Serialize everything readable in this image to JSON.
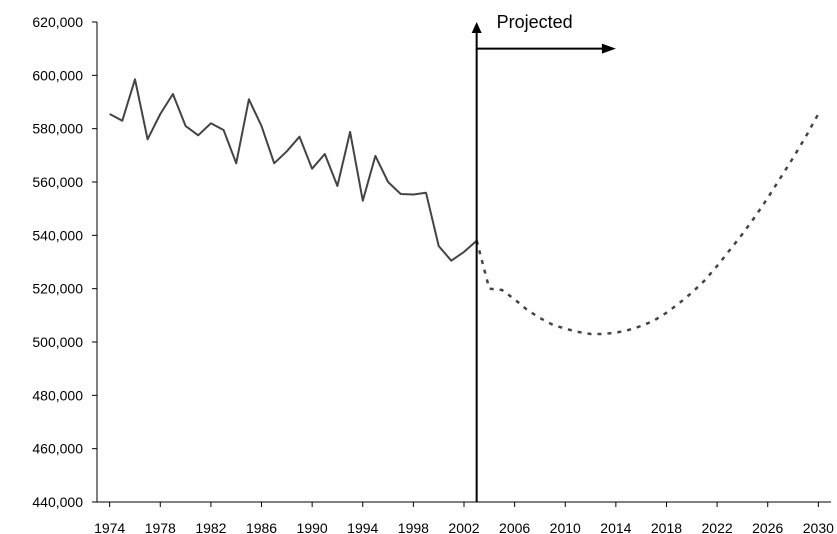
{
  "chart_data": {
    "type": "line",
    "title": "",
    "xlabel": "",
    "ylabel": "",
    "xlim": [
      1973,
      2031
    ],
    "ylim": [
      440000,
      620000
    ],
    "x_ticks": [
      1974,
      1978,
      1982,
      1986,
      1990,
      1994,
      1998,
      2002,
      2006,
      2010,
      2014,
      2018,
      2022,
      2026,
      2030
    ],
    "y_ticks": [
      440000,
      460000,
      480000,
      500000,
      520000,
      540000,
      560000,
      580000,
      600000,
      620000
    ],
    "y_tick_labels": [
      "440,000",
      "460,000",
      "480,000",
      "500,000",
      "520,000",
      "540,000",
      "560,000",
      "580,000",
      "600,000",
      "620,000"
    ],
    "grid": false,
    "divider_x": 2003,
    "annotation": {
      "text": "Projected",
      "arrow_from_x": 2003,
      "arrow_to_x": 2014,
      "y": 610000
    },
    "series": [
      {
        "style": "solid",
        "x": [
          1974,
          1975,
          1976,
          1977,
          1978,
          1979,
          1980,
          1981,
          1982,
          1983,
          1984,
          1985,
          1986,
          1987,
          1988,
          1989,
          1990,
          1991,
          1992,
          1993,
          1994,
          1995,
          1996,
          1997,
          1998,
          1999,
          2000,
          2001,
          2002,
          2003
        ],
        "y": [
          585500,
          583000,
          598500,
          576000,
          585500,
          593000,
          581000,
          577500,
          582000,
          579500,
          567000,
          591000,
          581000,
          567000,
          571500,
          577000,
          565000,
          570500,
          558500,
          578800,
          553000,
          569800,
          560000,
          555500,
          555300,
          556000,
          536000,
          530500,
          533800,
          538000
        ]
      },
      {
        "style": "dashed",
        "x": [
          2003,
          2004,
          2005,
          2006,
          2007,
          2008,
          2009,
          2010,
          2011,
          2012,
          2013,
          2014,
          2015,
          2016,
          2017,
          2018,
          2019,
          2020,
          2021,
          2022,
          2023,
          2024,
          2025,
          2026,
          2027,
          2028,
          2029,
          2030
        ],
        "y": [
          538000,
          520000,
          519500,
          516000,
          512000,
          509000,
          506500,
          505000,
          503800,
          503000,
          503000,
          503500,
          504500,
          506000,
          508000,
          511000,
          514500,
          518500,
          523000,
          528500,
          534500,
          540500,
          547000,
          554000,
          561500,
          569000,
          577000,
          585500
        ]
      }
    ]
  }
}
